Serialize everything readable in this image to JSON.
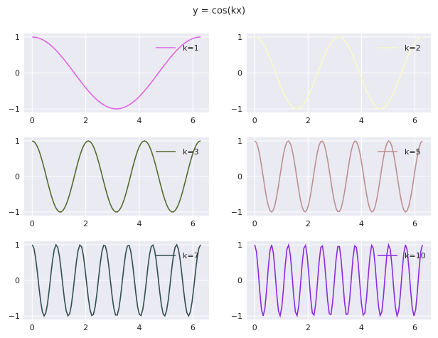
{
  "figure": {
    "title": "y = cos(kx)"
  },
  "chart_data": [
    {
      "type": "line",
      "function": "cos(kx)",
      "k": 1,
      "x_range": [
        0,
        6.283
      ],
      "xticks": [
        "0",
        "2",
        "4",
        "6"
      ],
      "yticks": [
        "1",
        "0",
        "−1"
      ],
      "xlim": [
        -0.3,
        6.6
      ],
      "ylim": [
        -1.1,
        1.1
      ],
      "grid": true,
      "legend_position": "top-right",
      "series": [
        {
          "name": "k=1",
          "color": "#e066e0"
        }
      ]
    },
    {
      "type": "line",
      "function": "cos(kx)",
      "k": 2,
      "x_range": [
        0,
        6.283
      ],
      "xticks": [
        "0",
        "2",
        "4",
        "6"
      ],
      "yticks": [
        "1",
        "0",
        "−1"
      ],
      "xlim": [
        -0.3,
        6.6
      ],
      "ylim": [
        -1.1,
        1.1
      ],
      "grid": true,
      "legend_position": "top-right",
      "series": [
        {
          "name": "k=2",
          "color": "#fafac8"
        }
      ]
    },
    {
      "type": "line",
      "function": "cos(kx)",
      "k": 3,
      "x_range": [
        0,
        6.283
      ],
      "xticks": [
        "0",
        "2",
        "4",
        "6"
      ],
      "yticks": [
        "1",
        "0",
        "−1"
      ],
      "xlim": [
        -0.3,
        6.6
      ],
      "ylim": [
        -1.1,
        1.1
      ],
      "grid": true,
      "legend_position": "top-right",
      "series": [
        {
          "name": "k=3",
          "color": "#556b2f"
        }
      ]
    },
    {
      "type": "line",
      "function": "cos(kx)",
      "k": 5,
      "x_range": [
        0,
        6.283
      ],
      "xticks": [
        "0",
        "2",
        "4",
        "6"
      ],
      "yticks": [
        "1",
        "0",
        "−1"
      ],
      "xlim": [
        -0.3,
        6.6
      ],
      "ylim": [
        -1.1,
        1.1
      ],
      "grid": true,
      "legend_position": "top-right",
      "series": [
        {
          "name": "k=5",
          "color": "#bc8f8f"
        }
      ]
    },
    {
      "type": "line",
      "function": "cos(kx)",
      "k": 7,
      "x_range": [
        0,
        6.283
      ],
      "xticks": [
        "0",
        "2",
        "4",
        "6"
      ],
      "yticks": [
        "1",
        "0",
        "−1"
      ],
      "xlim": [
        -0.3,
        6.6
      ],
      "ylim": [
        -1.1,
        1.1
      ],
      "grid": true,
      "legend_position": "top-right",
      "series": [
        {
          "name": "k=7",
          "color": "#2f4f4f"
        }
      ]
    },
    {
      "type": "line",
      "function": "cos(kx)",
      "k": 10,
      "x_range": [
        0,
        6.283
      ],
      "xticks": [
        "0",
        "2",
        "4",
        "6"
      ],
      "yticks": [
        "1",
        "0",
        "−1"
      ],
      "xlim": [
        -0.3,
        6.6
      ],
      "ylim": [
        -1.1,
        1.1
      ],
      "grid": true,
      "legend_position": "top-right",
      "series": [
        {
          "name": "k=10",
          "color": "#8a2be2"
        }
      ]
    }
  ]
}
